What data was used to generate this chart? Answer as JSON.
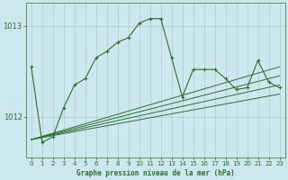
{
  "title": "Graphe pression niveau de la mer (hPa)",
  "bg_color": "#cce8ee",
  "grid_color": "#aaccd4",
  "line_color": "#2d6e2d",
  "x_ticks": [
    0,
    1,
    2,
    3,
    4,
    5,
    6,
    7,
    8,
    9,
    10,
    11,
    12,
    13,
    14,
    15,
    16,
    17,
    18,
    19,
    20,
    21,
    22,
    23
  ],
  "y_ticks": [
    1012,
    1013
  ],
  "ylim": [
    1011.55,
    1013.25
  ],
  "xlim": [
    -0.5,
    23.5
  ],
  "main_line_x": [
    0,
    1,
    2,
    3,
    4,
    5,
    6,
    7,
    8,
    9,
    10,
    11,
    12,
    13,
    14,
    15,
    16,
    17,
    18,
    19,
    20,
    21,
    22,
    23
  ],
  "main_line_y": [
    1012.55,
    1011.72,
    1011.78,
    1012.1,
    1012.35,
    1012.42,
    1012.65,
    1012.72,
    1012.82,
    1012.87,
    1013.03,
    1013.08,
    1013.08,
    1012.65,
    1012.22,
    1012.52,
    1012.52,
    1012.52,
    1012.42,
    1012.3,
    1012.32,
    1012.62,
    1012.38,
    1012.32
  ],
  "reg_lines": [
    [
      [
        0,
        23
      ],
      [
        1011.75,
        1012.55
      ]
    ],
    [
      [
        0,
        23
      ],
      [
        1011.75,
        1012.45
      ]
    ],
    [
      [
        0,
        23
      ],
      [
        1011.75,
        1012.35
      ]
    ],
    [
      [
        0,
        23
      ],
      [
        1011.75,
        1012.25
      ]
    ]
  ]
}
